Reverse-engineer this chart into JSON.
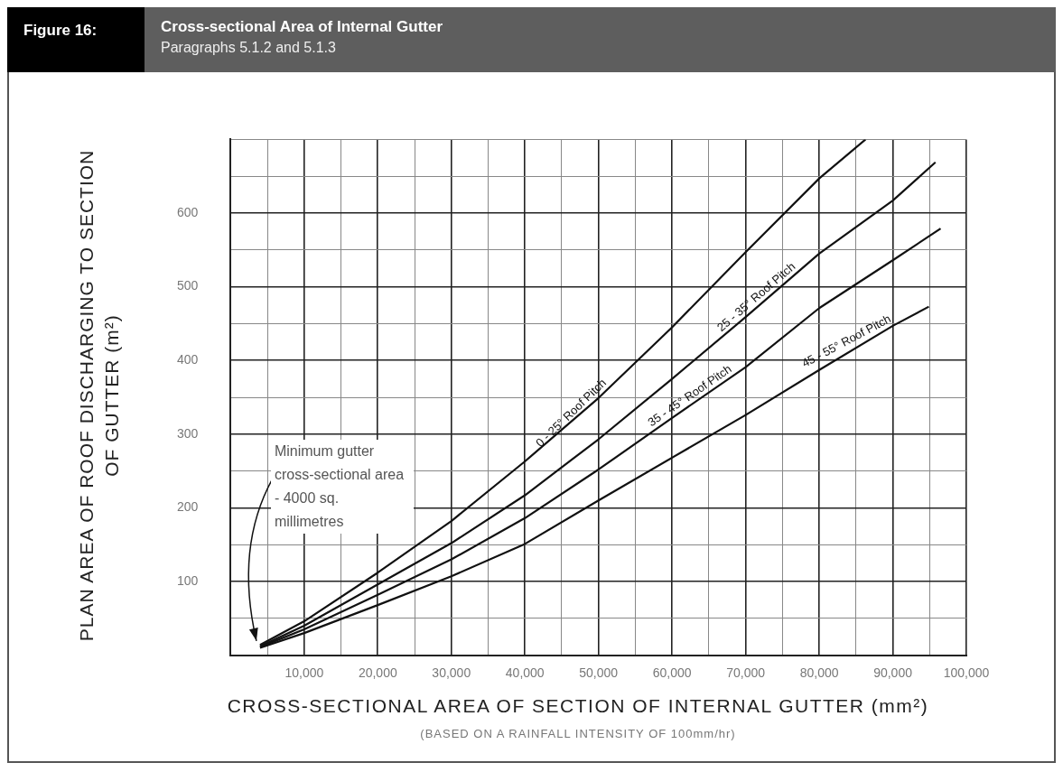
{
  "chart_data": {
    "type": "line",
    "title": "Cross-sectional Area of Internal Gutter",
    "subtitle": "Paragraphs 5.1.2 and 5.1.3",
    "xlabel": "CROSS-SECTIONAL AREA OF SECTION OF INTERNAL GUTTER (mm²)",
    "ylabel": "PLAN AREA OF ROOF DISCHARGING TO SECTION OF GUTTER (m²)",
    "annotations": [
      "Figure 16:",
      {
        "text": "Minimum gutter cross-sectional area - 4000 sq. millimetres",
        "x": 4000,
        "y": 12
      },
      "(BASED ON A RAINFALL INTENSITY OF 100mm/hr)"
    ],
    "series": [
      {
        "name": "0 - 25° Roof Pitch",
        "color": "#111111",
        "x": [
          4000,
          10000,
          20000,
          30000,
          40000,
          50000,
          60000,
          70000,
          80000,
          86300
        ],
        "values": [
          14,
          46,
          112,
          182,
          263,
          349,
          445,
          547,
          647,
          700
        ]
      },
      {
        "name": "25 - 35° Roof Pitch",
        "color": "#111111",
        "x": [
          4000,
          10000,
          20000,
          30000,
          40000,
          50000,
          60000,
          70000,
          80000,
          90000,
          95800
        ],
        "values": [
          12,
          40,
          96,
          152,
          217,
          293,
          375,
          459,
          545,
          617,
          669
        ]
      },
      {
        "name": "35 - 45° Roof Pitch",
        "color": "#111111",
        "x": [
          4000,
          10000,
          20000,
          30000,
          40000,
          50000,
          60000,
          70000,
          80000,
          90000,
          96500
        ],
        "values": [
          11,
          35,
          82,
          130,
          186,
          252,
          322,
          391,
          471,
          536,
          579
        ]
      },
      {
        "name": "45 - 55° Roof Pitch",
        "color": "#111111",
        "x": [
          4000,
          10000,
          20000,
          30000,
          40000,
          50000,
          60000,
          70000,
          80000,
          90000,
          94900
        ],
        "values": [
          10,
          30,
          68,
          107,
          151,
          210,
          268,
          326,
          387,
          447,
          473
        ]
      }
    ],
    "xlim": [
      0,
      100000
    ],
    "xticks": [
      {
        "value": 0,
        "label": null
      },
      {
        "value": 5000,
        "label": null
      },
      {
        "value": 10000,
        "label": "10,000"
      },
      {
        "value": 15000,
        "label": null
      },
      {
        "value": 20000,
        "label": "20,000"
      },
      {
        "value": 25000,
        "label": null
      },
      {
        "value": 30000,
        "label": "30,000"
      },
      {
        "value": 35000,
        "label": null
      },
      {
        "value": 40000,
        "label": "40,000"
      },
      {
        "value": 45000,
        "label": null
      },
      {
        "value": 50000,
        "label": "50,000"
      },
      {
        "value": 55000,
        "label": null
      },
      {
        "value": 60000,
        "label": "60,000"
      },
      {
        "value": 65000,
        "label": null
      },
      {
        "value": 70000,
        "label": "70,000"
      },
      {
        "value": 75000,
        "label": null
      },
      {
        "value": 80000,
        "label": "80,000"
      },
      {
        "value": 85000,
        "label": null
      },
      {
        "value": 90000,
        "label": "90,000"
      },
      {
        "value": 95000,
        "label": null
      },
      {
        "value": 100000,
        "label": "100,000"
      }
    ],
    "ylim": [
      0,
      700
    ],
    "yticks": [
      {
        "value": 0,
        "label": null
      },
      {
        "value": 50,
        "label": null
      },
      100,
      {
        "value": 150,
        "label": null
      },
      200,
      {
        "value": 250,
        "label": null
      },
      300,
      {
        "value": 350,
        "label": null
      },
      400,
      {
        "value": 450,
        "label": null
      },
      500,
      {
        "value": 550,
        "label": null
      },
      600,
      {
        "value": 650,
        "label": null
      },
      {
        "value": 700,
        "label": null
      }
    ],
    "grid": true
  }
}
